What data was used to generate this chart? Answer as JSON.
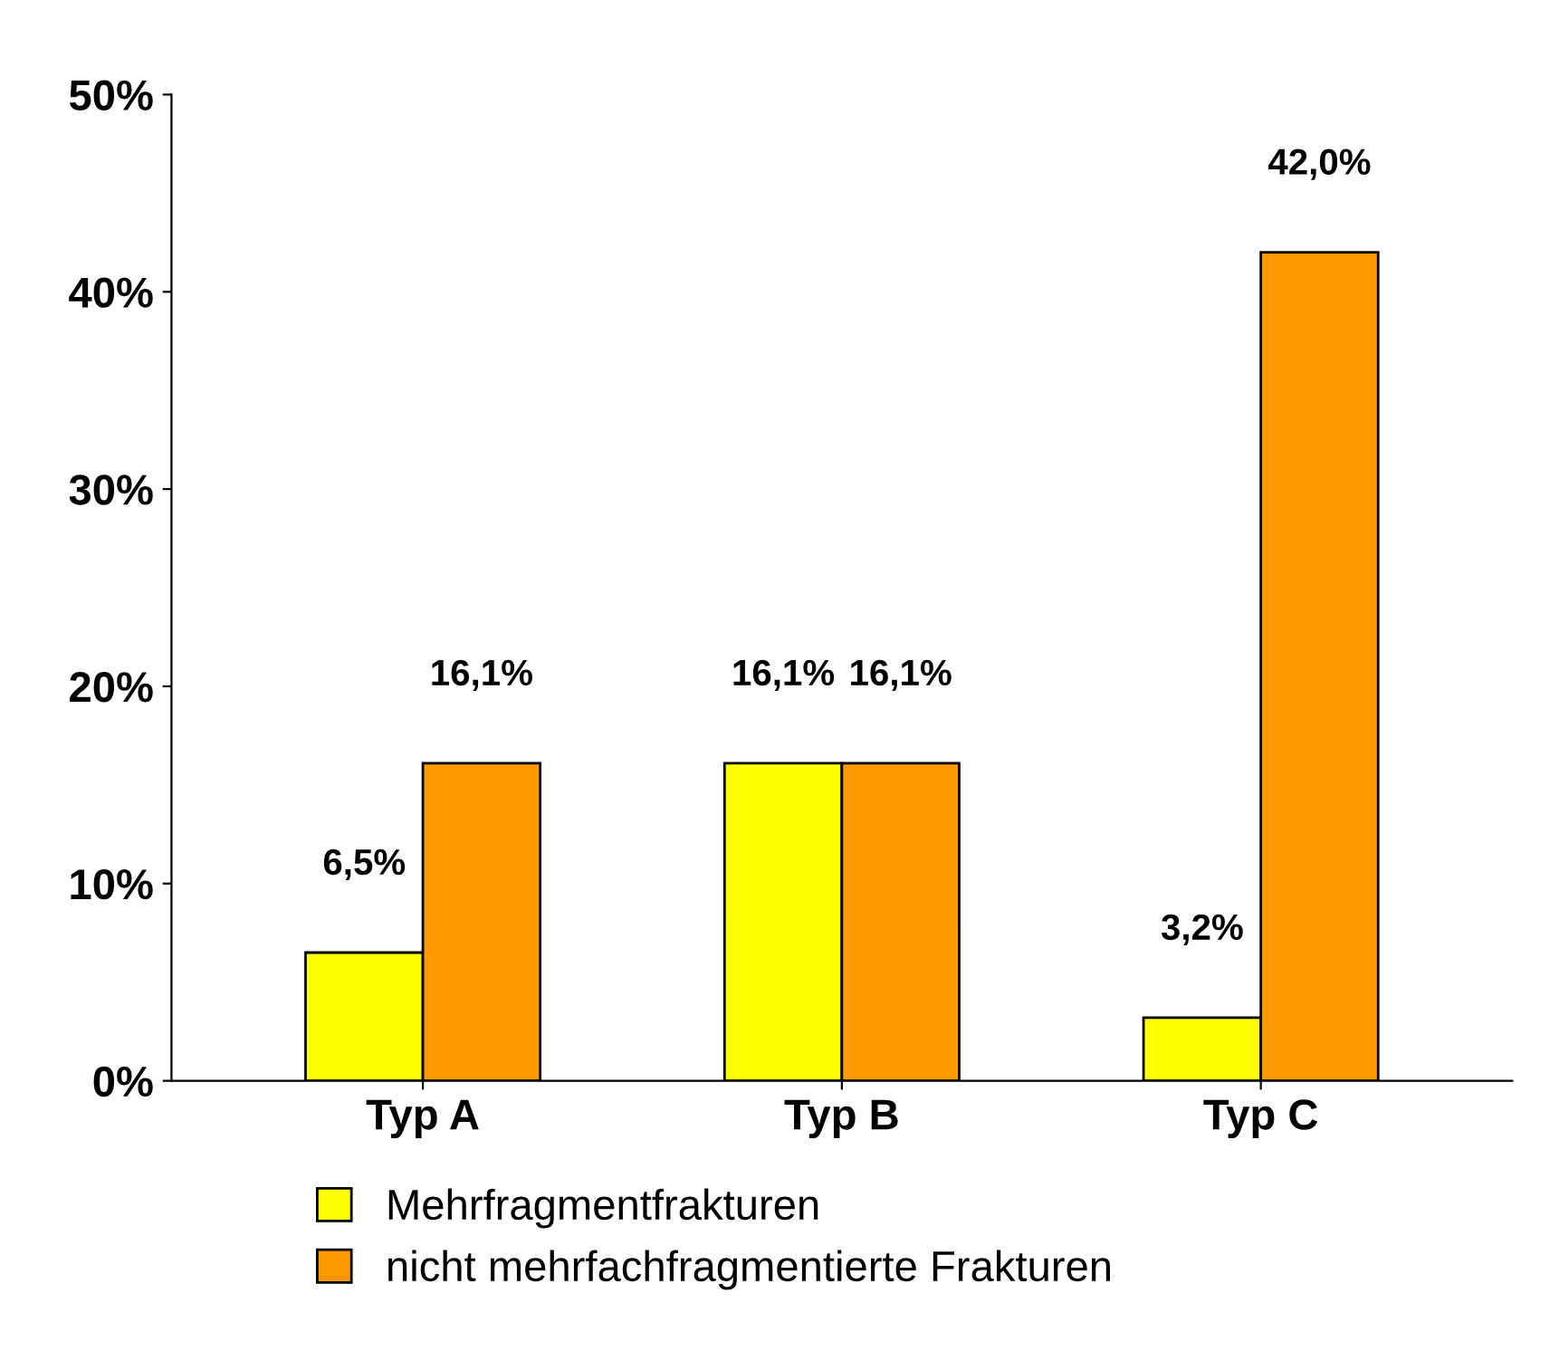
{
  "chart_data": {
    "type": "bar",
    "categories": [
      "Typ A",
      "Typ B",
      "Typ C"
    ],
    "series": [
      {
        "name": "Mehrfragmentfrakturen",
        "color": "#ffff00",
        "values": [
          6.5,
          16.1,
          3.2
        ],
        "value_labels": [
          "6,5%",
          "16,1%",
          "3,2%"
        ]
      },
      {
        "name": "nicht mehrfachfragmentierte Frakturen",
        "color": "#ff9900",
        "values": [
          16.1,
          16.1,
          42.0
        ],
        "value_labels": [
          "16,1%",
          "16,1%",
          "42,0%"
        ]
      }
    ],
    "ylim": [
      0,
      50
    ],
    "yticks": [
      {
        "value": 0,
        "label": "0%"
      },
      {
        "value": 10,
        "label": "10%"
      },
      {
        "value": 20,
        "label": "20%"
      },
      {
        "value": 30,
        "label": "30%"
      },
      {
        "value": 40,
        "label": "40%"
      },
      {
        "value": 50,
        "label": "50%"
      }
    ],
    "grid": false,
    "legend": "bottom"
  }
}
